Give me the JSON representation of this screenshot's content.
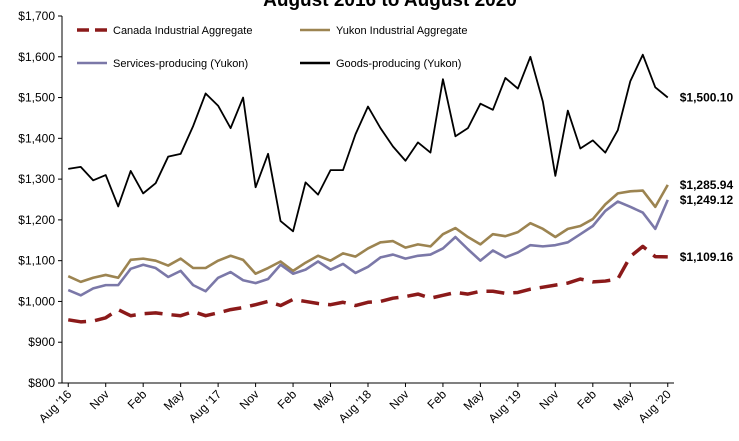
{
  "chart_data": {
    "type": "line",
    "title": "August 2016 to August 2020",
    "categories": [
      "Aug '16",
      null,
      null,
      "Nov",
      null,
      null,
      "Feb",
      null,
      null,
      "May",
      null,
      null,
      "Aug '17",
      null,
      null,
      "Nov",
      null,
      null,
      "Feb",
      null,
      null,
      "May",
      null,
      null,
      "Aug '18",
      null,
      null,
      "Nov",
      null,
      null,
      "Feb",
      null,
      null,
      "May",
      null,
      null,
      "Aug '19",
      null,
      null,
      "Nov",
      null,
      null,
      "Feb",
      null,
      null,
      "May",
      null,
      null,
      "Aug '20"
    ],
    "ylim": [
      800,
      1700
    ],
    "yticks": [
      {
        "value": 800,
        "label": "$800"
      },
      {
        "value": 900,
        "label": "$900"
      },
      {
        "value": 1000,
        "label": "$1,000"
      },
      {
        "value": 1100,
        "label": "$1,100"
      },
      {
        "value": 1200,
        "label": "$1,200"
      },
      {
        "value": 1300,
        "label": "$1,300"
      },
      {
        "value": 1400,
        "label": "$1,400"
      },
      {
        "value": 1500,
        "label": "$1,500"
      },
      {
        "value": 1600,
        "label": "$1,600"
      },
      {
        "value": 1700,
        "label": "$1,700"
      }
    ],
    "series": [
      {
        "name": "Canada Industrial Aggregate",
        "color": "#8b1a1a",
        "dashed": true,
        "values": [
          955,
          950,
          952,
          960,
          980,
          965,
          970,
          972,
          968,
          965,
          975,
          965,
          972,
          980,
          985,
          992,
          1000,
          990,
          1005,
          1000,
          995,
          992,
          998,
          990,
          998,
          1000,
          1008,
          1012,
          1018,
          1008,
          1015,
          1022,
          1018,
          1025,
          1025,
          1020,
          1022,
          1030,
          1035,
          1040,
          1045,
          1055,
          1048,
          1050,
          1055,
          1110,
          1135,
          1110,
          1109.16
        ],
        "value_labels": [
          null,
          null,
          null,
          null,
          null,
          null,
          null,
          null,
          null,
          null,
          null,
          null,
          null,
          null,
          null,
          null,
          null,
          null,
          null,
          null,
          null,
          null,
          null,
          null,
          null,
          null,
          null,
          null,
          null,
          null,
          null,
          null,
          null,
          null,
          null,
          null,
          null,
          null,
          null,
          null,
          null,
          null,
          null,
          null,
          null,
          null,
          null,
          null,
          "$1,109.16"
        ]
      },
      {
        "name": "Yukon Industrial Aggregate",
        "color": "#9c8451",
        "dashed": false,
        "values": [
          1062,
          1048,
          1058,
          1065,
          1058,
          1102,
          1105,
          1100,
          1088,
          1105,
          1082,
          1082,
          1100,
          1112,
          1102,
          1068,
          1082,
          1098,
          1075,
          1095,
          1112,
          1100,
          1118,
          1110,
          1130,
          1145,
          1148,
          1132,
          1140,
          1135,
          1165,
          1180,
          1158,
          1140,
          1165,
          1160,
          1170,
          1192,
          1178,
          1158,
          1178,
          1185,
          1202,
          1238,
          1265,
          1270,
          1272,
          1232,
          1285.94
        ],
        "value_labels": [
          null,
          null,
          null,
          null,
          null,
          null,
          null,
          null,
          null,
          null,
          null,
          null,
          null,
          null,
          null,
          null,
          null,
          null,
          null,
          null,
          null,
          null,
          null,
          null,
          null,
          null,
          null,
          null,
          null,
          null,
          null,
          null,
          null,
          null,
          null,
          null,
          null,
          null,
          null,
          null,
          null,
          null,
          null,
          null,
          null,
          null,
          null,
          null,
          "$1,285.94"
        ]
      },
      {
        "name": "Services-producing (Yukon)",
        "color": "#7b78a8",
        "dashed": false,
        "values": [
          1028,
          1015,
          1032,
          1040,
          1040,
          1080,
          1090,
          1082,
          1060,
          1075,
          1040,
          1025,
          1058,
          1072,
          1052,
          1045,
          1055,
          1090,
          1068,
          1078,
          1098,
          1078,
          1092,
          1070,
          1085,
          1108,
          1115,
          1105,
          1112,
          1115,
          1130,
          1158,
          1128,
          1100,
          1125,
          1108,
          1120,
          1138,
          1135,
          1138,
          1145,
          1165,
          1185,
          1222,
          1245,
          1232,
          1218,
          1178,
          1249.12
        ],
        "value_labels": [
          null,
          null,
          null,
          null,
          null,
          null,
          null,
          null,
          null,
          null,
          null,
          null,
          null,
          null,
          null,
          null,
          null,
          null,
          null,
          null,
          null,
          null,
          null,
          null,
          null,
          null,
          null,
          null,
          null,
          null,
          null,
          null,
          null,
          null,
          null,
          null,
          null,
          null,
          null,
          null,
          null,
          null,
          null,
          null,
          null,
          null,
          null,
          null,
          "$1,249.12"
        ]
      },
      {
        "name": "Goods-producing (Yukon)",
        "color": "#000000",
        "dashed": false,
        "values": [
          1325,
          1330,
          1297,
          1310,
          1233,
          1320,
          1265,
          1290,
          1355,
          1362,
          1430,
          1510,
          1480,
          1425,
          1500,
          1280,
          1362,
          1197,
          1172,
          1292,
          1262,
          1322,
          1322,
          1410,
          1478,
          1425,
          1380,
          1345,
          1390,
          1365,
          1545,
          1405,
          1425,
          1485,
          1470,
          1548,
          1522,
          1600,
          1490,
          1308,
          1468,
          1375,
          1395,
          1365,
          1420,
          1540,
          1605,
          1525,
          1500.1
        ],
        "value_labels": [
          null,
          null,
          null,
          null,
          null,
          null,
          null,
          null,
          null,
          null,
          null,
          null,
          null,
          null,
          null,
          null,
          null,
          null,
          null,
          null,
          null,
          null,
          null,
          null,
          null,
          null,
          null,
          null,
          null,
          null,
          null,
          null,
          null,
          null,
          null,
          null,
          null,
          null,
          null,
          null,
          null,
          null,
          null,
          null,
          null,
          null,
          null,
          null,
          "$1,500.10"
        ]
      }
    ]
  }
}
